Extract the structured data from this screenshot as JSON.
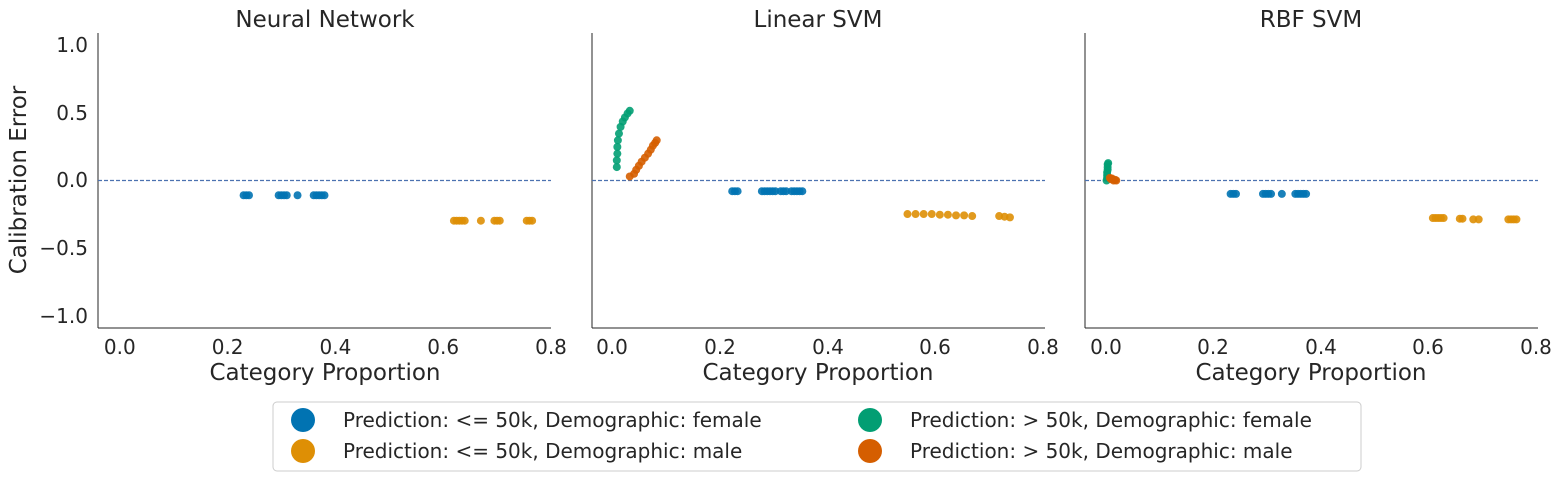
{
  "colors": {
    "le50_female": "#0173b2",
    "le50_male": "#de8f05",
    "gt50_female": "#029e73",
    "gt50_male": "#d55e00",
    "refline": "#4c72b0",
    "axis": "#262626"
  },
  "chart_data": [
    {
      "type": "scatter",
      "title": "Neural Network",
      "xlabel": "Category Proportion",
      "ylabel": "Calibration Error",
      "xlim": [
        -0.04,
        0.8
      ],
      "ylim": [
        -1.1,
        1.1
      ],
      "xticks": [
        "0.0",
        "0.2",
        "0.4",
        "0.6",
        "0.8"
      ],
      "yticks": [
        "−1.0",
        "−0.5",
        "0.0",
        "0.5",
        "1.0"
      ],
      "reference_line": 0.0,
      "series": [
        {
          "name": "Prediction: <= 50k, Demographic: female",
          "color_key": "le50_female",
          "points": [
            [
              0.23,
              -0.11
            ],
            [
              0.235,
              -0.11
            ],
            [
              0.24,
              -0.11
            ],
            [
              0.295,
              -0.11
            ],
            [
              0.3,
              -0.11
            ],
            [
              0.305,
              -0.11
            ],
            [
              0.31,
              -0.11
            ],
            [
              0.33,
              -0.11
            ],
            [
              0.36,
              -0.11
            ],
            [
              0.365,
              -0.11
            ],
            [
              0.37,
              -0.11
            ],
            [
              0.375,
              -0.11
            ],
            [
              0.38,
              -0.11
            ]
          ]
        },
        {
          "name": "Prediction: <= 50k, Demographic: male",
          "color_key": "le50_male",
          "points": [
            [
              0.62,
              -0.3
            ],
            [
              0.625,
              -0.3
            ],
            [
              0.63,
              -0.3
            ],
            [
              0.635,
              -0.3
            ],
            [
              0.64,
              -0.3
            ],
            [
              0.67,
              -0.3
            ],
            [
              0.695,
              -0.3
            ],
            [
              0.7,
              -0.3
            ],
            [
              0.705,
              -0.3
            ],
            [
              0.755,
              -0.3
            ],
            [
              0.76,
              -0.3
            ],
            [
              0.765,
              -0.3
            ]
          ]
        },
        {
          "name": "Prediction: > 50k, Demographic: female",
          "color_key": "gt50_female",
          "points": []
        },
        {
          "name": "Prediction: > 50k, Demographic: male",
          "color_key": "gt50_male",
          "points": []
        }
      ]
    },
    {
      "type": "scatter",
      "title": "Linear SVM",
      "xlabel": "Category Proportion",
      "ylabel": "",
      "xlim": [
        -0.04,
        0.8
      ],
      "ylim": [
        -1.1,
        1.1
      ],
      "xticks": [
        "0.0",
        "0.2",
        "0.4",
        "0.6",
        "0.8"
      ],
      "yticks": [],
      "reference_line": 0.0,
      "series": [
        {
          "name": "Prediction: <= 50k, Demographic: female",
          "color_key": "le50_female",
          "points": [
            [
              0.22,
              -0.08
            ],
            [
              0.225,
              -0.08
            ],
            [
              0.23,
              -0.08
            ],
            [
              0.275,
              -0.08
            ],
            [
              0.28,
              -0.08
            ],
            [
              0.285,
              -0.08
            ],
            [
              0.29,
              -0.08
            ],
            [
              0.295,
              -0.08
            ],
            [
              0.3,
              -0.08
            ],
            [
              0.31,
              -0.08
            ],
            [
              0.315,
              -0.08
            ],
            [
              0.32,
              -0.08
            ],
            [
              0.33,
              -0.08
            ],
            [
              0.335,
              -0.08
            ],
            [
              0.34,
              -0.08
            ],
            [
              0.345,
              -0.08
            ],
            [
              0.35,
              -0.08
            ]
          ]
        },
        {
          "name": "Prediction: <= 50k, Demographic: male",
          "color_key": "le50_male",
          "points": [
            [
              0.545,
              -0.25
            ],
            [
              0.56,
              -0.25
            ],
            [
              0.575,
              -0.25
            ],
            [
              0.59,
              -0.25
            ],
            [
              0.605,
              -0.255
            ],
            [
              0.62,
              -0.255
            ],
            [
              0.635,
              -0.26
            ],
            [
              0.65,
              -0.26
            ],
            [
              0.665,
              -0.265
            ],
            [
              0.715,
              -0.265
            ],
            [
              0.725,
              -0.27
            ],
            [
              0.735,
              -0.275
            ]
          ]
        },
        {
          "name": "Prediction: > 50k, Demographic: female",
          "color_key": "gt50_female",
          "points": [
            [
              0.006,
              0.1
            ],
            [
              0.006,
              0.15
            ],
            [
              0.007,
              0.2
            ],
            [
              0.007,
              0.25
            ],
            [
              0.008,
              0.3
            ],
            [
              0.01,
              0.35
            ],
            [
              0.013,
              0.4
            ],
            [
              0.017,
              0.44
            ],
            [
              0.021,
              0.47
            ],
            [
              0.026,
              0.5
            ],
            [
              0.03,
              0.52
            ]
          ]
        },
        {
          "name": "Prediction: > 50k, Demographic: male",
          "color_key": "gt50_male",
          "points": [
            [
              0.03,
              0.03
            ],
            [
              0.038,
              0.05
            ],
            [
              0.042,
              0.08
            ],
            [
              0.047,
              0.11
            ],
            [
              0.052,
              0.14
            ],
            [
              0.058,
              0.17
            ],
            [
              0.064,
              0.2
            ],
            [
              0.069,
              0.23
            ],
            [
              0.073,
              0.26
            ],
            [
              0.077,
              0.28
            ],
            [
              0.08,
              0.3
            ]
          ]
        }
      ]
    },
    {
      "type": "scatter",
      "title": "RBF SVM",
      "xlabel": "Category Proportion",
      "ylabel": "",
      "xlim": [
        -0.04,
        0.8
      ],
      "ylim": [
        -1.1,
        1.1
      ],
      "xticks": [
        "0.0",
        "0.2",
        "0.4",
        "0.6",
        "0.8"
      ],
      "yticks": [],
      "reference_line": 0.0,
      "series": [
        {
          "name": "Prediction: <= 50k, Demographic: female",
          "color_key": "le50_female",
          "points": [
            [
              0.23,
              -0.1
            ],
            [
              0.235,
              -0.1
            ],
            [
              0.24,
              -0.1
            ],
            [
              0.29,
              -0.1
            ],
            [
              0.295,
              -0.1
            ],
            [
              0.3,
              -0.1
            ],
            [
              0.305,
              -0.1
            ],
            [
              0.325,
              -0.1
            ],
            [
              0.35,
              -0.1
            ],
            [
              0.355,
              -0.1
            ],
            [
              0.36,
              -0.1
            ],
            [
              0.365,
              -0.1
            ],
            [
              0.37,
              -0.1
            ]
          ]
        },
        {
          "name": "Prediction: <= 50k, Demographic: male",
          "color_key": "le50_male",
          "points": [
            [
              0.605,
              -0.28
            ],
            [
              0.61,
              -0.28
            ],
            [
              0.615,
              -0.28
            ],
            [
              0.62,
              -0.28
            ],
            [
              0.625,
              -0.28
            ],
            [
              0.655,
              -0.285
            ],
            [
              0.66,
              -0.285
            ],
            [
              0.68,
              -0.29
            ],
            [
              0.69,
              -0.29
            ],
            [
              0.745,
              -0.29
            ],
            [
              0.75,
              -0.29
            ],
            [
              0.755,
              -0.29
            ],
            [
              0.76,
              -0.29
            ]
          ]
        },
        {
          "name": "Prediction: > 50k, Demographic: female",
          "color_key": "gt50_female",
          "points": [
            [
              0.0,
              0.0
            ],
            [
              0.001,
              0.02
            ],
            [
              0.001,
              0.04
            ],
            [
              0.001,
              0.06
            ],
            [
              0.002,
              0.08
            ],
            [
              0.002,
              0.1
            ],
            [
              0.002,
              0.12
            ],
            [
              0.003,
              0.13
            ]
          ]
        },
        {
          "name": "Prediction: > 50k, Demographic: male",
          "color_key": "gt50_male",
          "points": [
            [
              0.006,
              0.02
            ],
            [
              0.008,
              0.01
            ],
            [
              0.01,
              0.015
            ],
            [
              0.013,
              0.0
            ],
            [
              0.016,
              0.005
            ],
            [
              0.018,
              0.0
            ]
          ]
        }
      ]
    }
  ],
  "legend": {
    "entries": [
      {
        "label": "Prediction: <= 50k, Demographic: female",
        "color_key": "le50_female"
      },
      {
        "label": "Prediction: > 50k, Demographic: female",
        "color_key": "gt50_female"
      },
      {
        "label": "Prediction: <= 50k, Demographic: male",
        "color_key": "le50_male"
      },
      {
        "label": "Prediction: > 50k, Demographic: male",
        "color_key": "gt50_male"
      }
    ]
  }
}
